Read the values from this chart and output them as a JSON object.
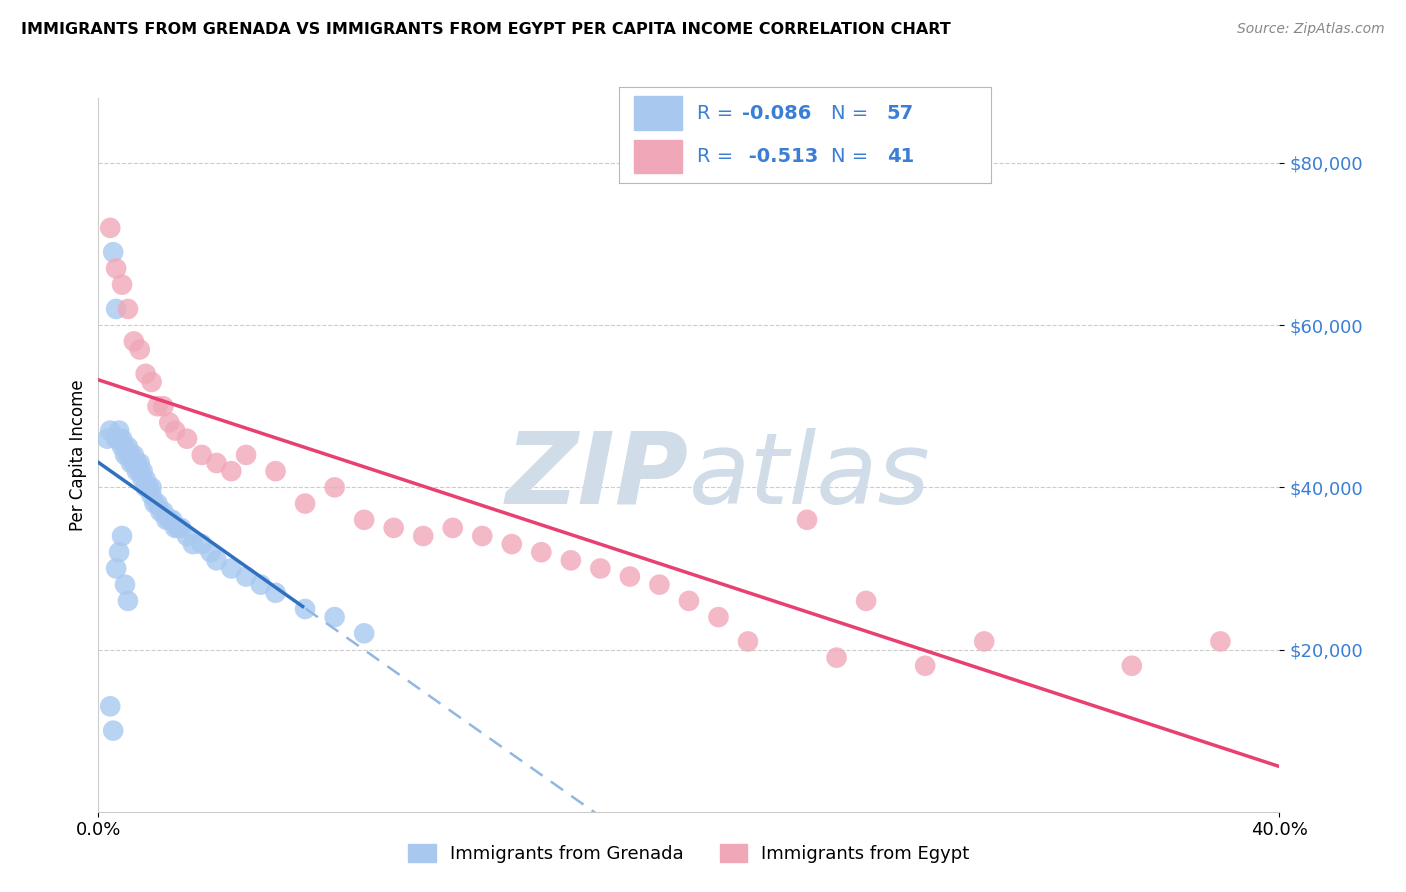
{
  "title": "IMMIGRANTS FROM GRENADA VS IMMIGRANTS FROM EGYPT PER CAPITA INCOME CORRELATION CHART",
  "source": "Source: ZipAtlas.com",
  "ylabel": "Per Capita Income",
  "x_min": 0.0,
  "x_max": 0.4,
  "y_min": 0,
  "y_max": 88000,
  "yticks": [
    20000,
    40000,
    60000,
    80000
  ],
  "ytick_labels": [
    "$20,000",
    "$40,000",
    "$60,000",
    "$80,000"
  ],
  "xtick_vals": [
    0.0,
    0.4
  ],
  "xtick_labels": [
    "0.0%",
    "40.0%"
  ],
  "R_grenada": -0.086,
  "N_grenada": 57,
  "R_egypt": -0.513,
  "N_egypt": 41,
  "color_grenada": "#a8c8f0",
  "color_egypt": "#f0a8b8",
  "trend_grenada_solid_color": "#3070c0",
  "trend_grenada_dash_color": "#90b8e0",
  "trend_egypt_color": "#e84070",
  "watermark_color": "#d0dce8",
  "background_color": "#ffffff",
  "ytick_color": "#3a7fd5",
  "legend_text_color": "#3a7fd5",
  "legend_R_value_color": "#3a7fd5",
  "legend_N_value_color": "#3a7fd5",
  "grid_color": "#cccccc",
  "scatter_grenada_x": [
    0.003,
    0.004,
    0.005,
    0.006,
    0.006,
    0.007,
    0.007,
    0.008,
    0.008,
    0.009,
    0.009,
    0.01,
    0.01,
    0.011,
    0.011,
    0.012,
    0.012,
    0.013,
    0.013,
    0.014,
    0.014,
    0.015,
    0.015,
    0.016,
    0.016,
    0.017,
    0.018,
    0.018,
    0.019,
    0.02,
    0.021,
    0.022,
    0.023,
    0.024,
    0.025,
    0.026,
    0.027,
    0.028,
    0.03,
    0.032,
    0.035,
    0.038,
    0.04,
    0.045,
    0.05,
    0.055,
    0.06,
    0.07,
    0.08,
    0.09,
    0.004,
    0.005,
    0.006,
    0.007,
    0.008,
    0.009,
    0.01
  ],
  "scatter_grenada_y": [
    46000,
    47000,
    69000,
    46000,
    62000,
    46000,
    47000,
    45000,
    46000,
    45000,
    44000,
    44000,
    45000,
    43000,
    44000,
    43000,
    44000,
    43000,
    42000,
    42000,
    43000,
    41000,
    42000,
    41000,
    40000,
    40000,
    39000,
    40000,
    38000,
    38000,
    37000,
    37000,
    36000,
    36000,
    36000,
    35000,
    35000,
    35000,
    34000,
    33000,
    33000,
    32000,
    31000,
    30000,
    29000,
    28000,
    27000,
    25000,
    24000,
    22000,
    13000,
    10000,
    30000,
    32000,
    34000,
    28000,
    26000
  ],
  "scatter_egypt_x": [
    0.004,
    0.006,
    0.008,
    0.01,
    0.012,
    0.014,
    0.016,
    0.018,
    0.02,
    0.022,
    0.024,
    0.026,
    0.03,
    0.035,
    0.04,
    0.045,
    0.05,
    0.06,
    0.07,
    0.08,
    0.09,
    0.1,
    0.11,
    0.12,
    0.13,
    0.14,
    0.15,
    0.16,
    0.17,
    0.18,
    0.19,
    0.2,
    0.21,
    0.22,
    0.24,
    0.25,
    0.26,
    0.28,
    0.3,
    0.35,
    0.38
  ],
  "scatter_egypt_y": [
    72000,
    67000,
    65000,
    62000,
    58000,
    57000,
    54000,
    53000,
    50000,
    50000,
    48000,
    47000,
    46000,
    44000,
    43000,
    42000,
    44000,
    42000,
    38000,
    40000,
    36000,
    35000,
    34000,
    35000,
    34000,
    33000,
    32000,
    31000,
    30000,
    29000,
    28000,
    26000,
    24000,
    21000,
    36000,
    19000,
    26000,
    18000,
    21000,
    18000,
    21000
  ]
}
